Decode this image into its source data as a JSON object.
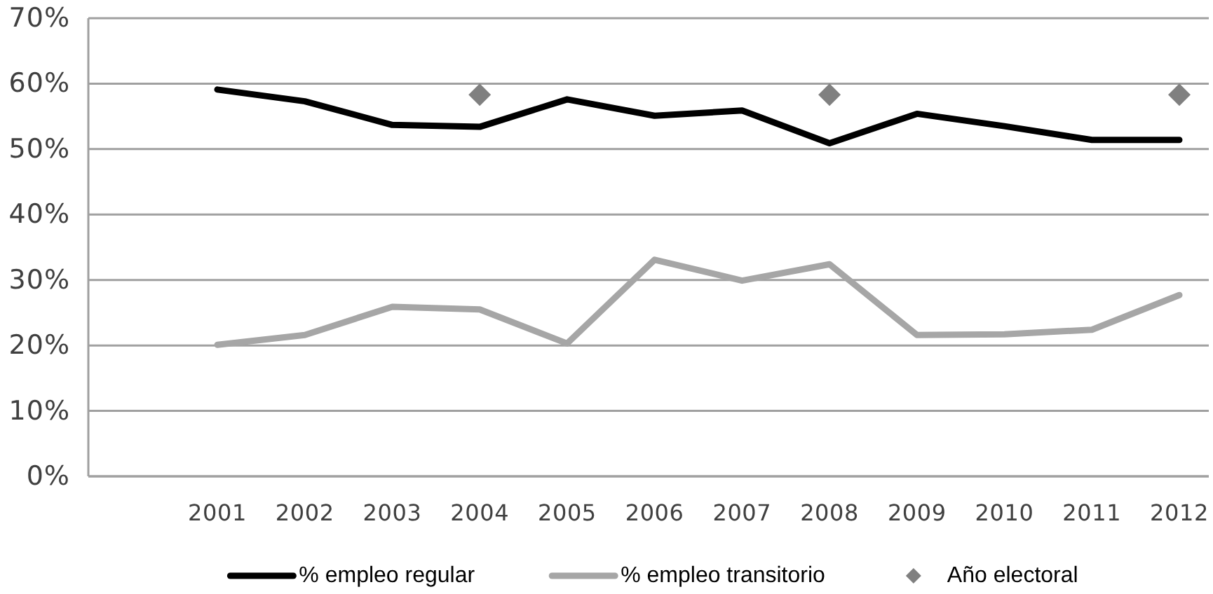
{
  "chart_data": {
    "type": "line",
    "categories": [
      "2001",
      "2002",
      "2003",
      "2004",
      "2005",
      "2006",
      "2007",
      "2008",
      "2009",
      "2010",
      "2011",
      "2012"
    ],
    "series": [
      {
        "name": "% empleo regular",
        "color": "#000000",
        "values": [
          59.1,
          57.3,
          53.7,
          53.4,
          57.6,
          55.1,
          55.9,
          50.9,
          55.4,
          53.5,
          51.4,
          51.4
        ]
      },
      {
        "name": "% empleo transitorio",
        "color": "#a6a6a6",
        "values": [
          20.1,
          21.6,
          25.9,
          25.5,
          20.3,
          33.1,
          29.9,
          32.4,
          21.6,
          21.7,
          22.4,
          27.7
        ]
      },
      {
        "name": "Año electoral",
        "type": "scatter",
        "color": "#808080",
        "marker": "diamond",
        "values": [
          null,
          null,
          null,
          58.3,
          null,
          null,
          null,
          58.3,
          null,
          null,
          null,
          58.3
        ]
      }
    ],
    "ylim": [
      0,
      70
    ],
    "yticks": [
      {
        "value": 0,
        "label": "0%"
      },
      {
        "value": 10,
        "label": "10%"
      },
      {
        "value": 20,
        "label": "20%"
      },
      {
        "value": 30,
        "label": "30%"
      },
      {
        "value": 40,
        "label": "40%"
      },
      {
        "value": 50,
        "label": "50%"
      },
      {
        "value": 60,
        "label": "60%"
      },
      {
        "value": 70,
        "label": "70%"
      }
    ],
    "grid": "y",
    "legend": "bottom",
    "marker": "none",
    "line_style": "solid"
  }
}
